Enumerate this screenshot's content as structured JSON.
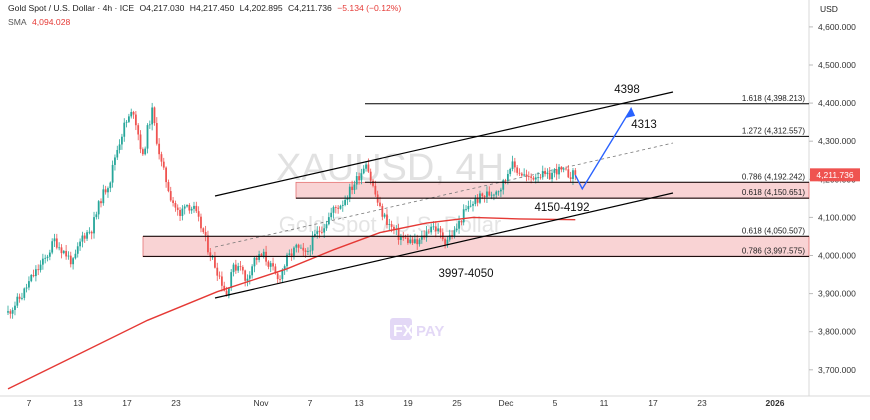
{
  "header": {
    "title": "Gold Spot / U.S. Dollar · 4h · ICE",
    "open": "O4,217.030",
    "high": "H4,217.450",
    "low": "L4,202.895",
    "close": "C4,211.736",
    "change": "−5.134 (−0.12%)",
    "sma_label": "SMA",
    "sma_value": "4,094.028"
  },
  "watermark": {
    "symbol": "XAUUSD, 4H",
    "name": "Gold Spot / U.S. Dollar",
    "logo_fx": "FX",
    "logo_pay": "PAY"
  },
  "colors": {
    "candle_up": "#26a69a",
    "candle_down": "#ef5350",
    "sma": "#e53935",
    "zone_fill": "#f5b5b8",
    "zone_border": "#e57373",
    "price_tag": "#ef5350",
    "projection": "#2962ff",
    "channel": "#000000"
  },
  "chart_data": {
    "type": "candlestick",
    "symbol": "XAUUSD",
    "timeframe": "4h",
    "currency": "USD",
    "ylim": [
      3630,
      4660
    ],
    "y_ticks": [
      3700,
      3800,
      3900,
      4000,
      4100,
      4200,
      4300,
      4400,
      4500,
      4600
    ],
    "y_tick_labels": [
      "3,700.000",
      "3,800.000",
      "3,900.000",
      "4,000.000",
      "4,100.000",
      "4,200.000",
      "4,300.000",
      "4,400.000",
      "4,500.000",
      "4,600.000"
    ],
    "x_ticks": [
      "7",
      "13",
      "17",
      "23",
      "Nov",
      "7",
      "13",
      "19",
      "25",
      "Dec",
      "5",
      "11",
      "17",
      "23",
      "2026"
    ],
    "last_price": 4211.736,
    "last_price_label": "4,211.736",
    "price_path": [
      [
        0,
        3850
      ],
      [
        3,
        3895
      ],
      [
        5,
        3940
      ],
      [
        8,
        3990
      ],
      [
        10,
        4040
      ],
      [
        12,
        4010
      ],
      [
        14,
        3980
      ],
      [
        16,
        4050
      ],
      [
        18,
        4070
      ],
      [
        20,
        4150
      ],
      [
        22,
        4200
      ],
      [
        23,
        4260
      ],
      [
        25,
        4340
      ],
      [
        27,
        4380
      ],
      [
        28,
        4320
      ],
      [
        29,
        4255
      ],
      [
        30,
        4330
      ],
      [
        31,
        4378
      ],
      [
        32,
        4305
      ],
      [
        33,
        4240
      ],
      [
        35,
        4155
      ],
      [
        37,
        4100
      ],
      [
        38,
        4140
      ],
      [
        40,
        4120
      ],
      [
        42,
        4060
      ],
      [
        43,
        4020
      ],
      [
        45,
        3960
      ],
      [
        46,
        3930
      ],
      [
        47,
        3895
      ],
      [
        48,
        3960
      ],
      [
        50,
        3980
      ],
      [
        51,
        3930
      ],
      [
        53,
        3990
      ],
      [
        55,
        4000
      ],
      [
        57,
        3960
      ],
      [
        58,
        3935
      ],
      [
        60,
        3990
      ],
      [
        62,
        4020
      ],
      [
        64,
        4000
      ],
      [
        66,
        4050
      ],
      [
        68,
        4080
      ],
      [
        70,
        4120
      ],
      [
        72,
        4140
      ],
      [
        74,
        4180
      ],
      [
        76,
        4220
      ],
      [
        77,
        4250
      ],
      [
        78,
        4200
      ],
      [
        80,
        4120
      ],
      [
        82,
        4080
      ],
      [
        84,
        4050
      ],
      [
        86,
        4040
      ],
      [
        88,
        4030
      ],
      [
        90,
        4060
      ],
      [
        91,
        4080
      ],
      [
        92,
        4070
      ],
      [
        94,
        4040
      ],
      [
        96,
        4060
      ],
      [
        98,
        4110
      ],
      [
        100,
        4140
      ],
      [
        102,
        4155
      ],
      [
        104,
        4165
      ],
      [
        106,
        4180
      ],
      [
        107,
        4200
      ],
      [
        108,
        4240
      ],
      [
        110,
        4220
      ],
      [
        112,
        4200
      ],
      [
        114,
        4215
      ],
      [
        116,
        4205
      ],
      [
        118,
        4225
      ],
      [
        120,
        4215
      ],
      [
        122,
        4211
      ]
    ],
    "sma_path": [
      [
        0,
        3650
      ],
      [
        15,
        3740
      ],
      [
        30,
        3830
      ],
      [
        45,
        3905
      ],
      [
        60,
        3965
      ],
      [
        70,
        4015
      ],
      [
        80,
        4060
      ],
      [
        90,
        4085
      ],
      [
        100,
        4100
      ],
      [
        110,
        4096
      ],
      [
        122,
        4094
      ]
    ],
    "fibonacci_levels": [
      {
        "ratio": "1.618",
        "price": 4398.213,
        "label": "1.618 (4,398.213)"
      },
      {
        "ratio": "1.272",
        "price": 4312.557,
        "label": "1.272 (4,312.557)"
      },
      {
        "ratio": "0.786",
        "price": 4192.242,
        "label": "0.786 (4,192.242)"
      },
      {
        "ratio": "0.618",
        "price": 4150.651,
        "label": "0.618 (4,150.651)"
      },
      {
        "ratio": "0.618",
        "price": 4050.507,
        "label": "0.618 (4,050.507)"
      },
      {
        "ratio": "0.786",
        "price": 3997.575,
        "label": "0.786 (3,997.575)"
      }
    ],
    "zones": [
      {
        "label": "4150-4192",
        "low": 4150,
        "high": 4192
      },
      {
        "label": "3997-4050",
        "low": 3997,
        "high": 4050
      }
    ],
    "targets": [
      {
        "label": "4398",
        "price": 4398
      },
      {
        "label": "4313",
        "price": 4313
      }
    ],
    "projection_path": [
      [
        122,
        4211
      ],
      [
        123.5,
        4175
      ],
      [
        134,
        4385
      ]
    ]
  }
}
